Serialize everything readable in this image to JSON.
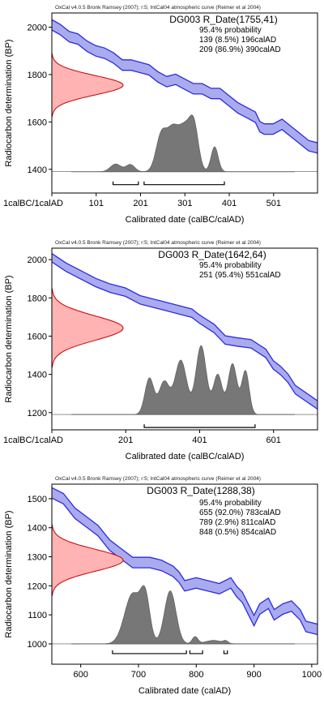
{
  "chart_data": [
    {
      "type": "area",
      "header": "OxCal v4.0.5 Bronk Ramsey (2007); r:5; IntCal04 atmospheric curve (Reimer et al 2004)",
      "title": "DG003 R_Date(1755,41)",
      "prob_heading": "95.4% probability",
      "prob_lines": [
        "139 (8.5%) 196calAD",
        "209 (86.9%) 390calAD"
      ],
      "xlabel": "Calibrated date (calBC/calAD)",
      "ylabel": "Radiocarbon determination (BP)",
      "xlim": [
        1,
        600
      ],
      "ylim": [
        1300,
        2060
      ],
      "x_ticks": [
        {
          "v": 1,
          "label": "1calBC/1calAD"
        },
        {
          "v": 101,
          "label": "101"
        },
        {
          "v": 201,
          "label": "201"
        },
        {
          "v": 301,
          "label": "301"
        },
        {
          "v": 401,
          "label": "401"
        },
        {
          "v": 501,
          "label": "501"
        }
      ],
      "y_ticks": [
        1400,
        1600,
        1800,
        2000
      ],
      "radiocarbon_date": {
        "mean": 1755,
        "sd": 41
      },
      "baseline_bp": 1390,
      "ranges": [
        [
          139,
          196
        ],
        [
          209,
          390
        ]
      ],
      "calibration_curve": [
        [
          1,
          2010
        ],
        [
          20,
          1990
        ],
        [
          40,
          1960
        ],
        [
          60,
          1950
        ],
        [
          80,
          1920
        ],
        [
          100,
          1900
        ],
        [
          120,
          1890
        ],
        [
          140,
          1870
        ],
        [
          160,
          1840
        ],
        [
          180,
          1840
        ],
        [
          200,
          1830
        ],
        [
          220,
          1820
        ],
        [
          240,
          1790
        ],
        [
          260,
          1770
        ],
        [
          280,
          1780
        ],
        [
          300,
          1760
        ],
        [
          320,
          1740
        ],
        [
          340,
          1740
        ],
        [
          360,
          1720
        ],
        [
          380,
          1720
        ],
        [
          400,
          1690
        ],
        [
          420,
          1660
        ],
        [
          440,
          1640
        ],
        [
          460,
          1620
        ],
        [
          470,
          1580
        ],
        [
          480,
          1570
        ],
        [
          500,
          1570
        ],
        [
          520,
          1590
        ],
        [
          540,
          1560
        ],
        [
          560,
          1530
        ],
        [
          580,
          1500
        ],
        [
          600,
          1490
        ]
      ],
      "curve_band_bp": 22,
      "posterior_peaks": [
        {
          "c": 145,
          "w": 12,
          "h": 0.13
        },
        {
          "c": 178,
          "w": 10,
          "h": 0.12
        },
        {
          "c": 248,
          "w": 12,
          "h": 0.62
        },
        {
          "c": 272,
          "w": 12,
          "h": 0.55
        },
        {
          "c": 300,
          "w": 16,
          "h": 0.75
        },
        {
          "c": 322,
          "w": 10,
          "h": 0.6
        },
        {
          "c": 368,
          "w": 8,
          "h": 0.42
        }
      ],
      "colors": {
        "curve": "#2a2ee0",
        "band": "#aaaaee",
        "prior_fill": "#ffb3b3",
        "prior_line": "#c80000",
        "posterior": "#777777",
        "plot_bg": "#ffffff"
      }
    },
    {
      "type": "area",
      "header": "OxCal v4.0.5 Bronk Ramsey (2007); r:5; IntCal04 atmospheric curve (Reimer et al 2004)",
      "title": "DG003 R_Date(1642,64)",
      "prob_heading": "95.4% probability",
      "prob_lines": [
        "251 (95.4%) 551calAD"
      ],
      "xlabel": "Calibrated date (calBC/calAD)",
      "ylabel": "Radiocarbon determination (BP)",
      "xlim": [
        1,
        720
      ],
      "ylim": [
        1110,
        2060
      ],
      "x_ticks": [
        {
          "v": 1,
          "label": "1calBC/1calAD"
        },
        {
          "v": 201,
          "label": "201"
        },
        {
          "v": 401,
          "label": "401"
        },
        {
          "v": 601,
          "label": "601"
        }
      ],
      "y_ticks": [
        1200,
        1400,
        1600,
        1800,
        2000
      ],
      "radiocarbon_date": {
        "mean": 1642,
        "sd": 64
      },
      "baseline_bp": 1190,
      "ranges": [
        [
          251,
          551
        ]
      ],
      "calibration_curve": [
        [
          1,
          2010
        ],
        [
          40,
          1960
        ],
        [
          80,
          1920
        ],
        [
          120,
          1880
        ],
        [
          160,
          1850
        ],
        [
          200,
          1830
        ],
        [
          240,
          1790
        ],
        [
          280,
          1770
        ],
        [
          300,
          1760
        ],
        [
          340,
          1740
        ],
        [
          380,
          1720
        ],
        [
          400,
          1690
        ],
        [
          440,
          1640
        ],
        [
          470,
          1580
        ],
        [
          500,
          1570
        ],
        [
          540,
          1560
        ],
        [
          580,
          1510
        ],
        [
          600,
          1450
        ],
        [
          620,
          1420
        ],
        [
          640,
          1380
        ],
        [
          660,
          1320
        ],
        [
          690,
          1280
        ],
        [
          720,
          1240
        ]
      ],
      "curve_band_bp": 22,
      "posterior_peaks": [
        {
          "c": 265,
          "w": 12,
          "h": 0.5
        },
        {
          "c": 305,
          "w": 14,
          "h": 0.45
        },
        {
          "c": 350,
          "w": 16,
          "h": 0.75
        },
        {
          "c": 405,
          "w": 14,
          "h": 0.95
        },
        {
          "c": 450,
          "w": 12,
          "h": 0.55
        },
        {
          "c": 490,
          "w": 12,
          "h": 0.7
        },
        {
          "c": 525,
          "w": 10,
          "h": 0.6
        }
      ],
      "colors": {
        "curve": "#2a2ee0",
        "band": "#aaaaee",
        "prior_fill": "#ffb3b3",
        "prior_line": "#c80000",
        "posterior": "#777777",
        "plot_bg": "#ffffff"
      }
    },
    {
      "type": "area",
      "header": "OxCal v4.0.5 Bronk Ramsey (2007); r:5; IntCal04 atmospheric curve (Reimer et al 2004)",
      "title": "DG003 R_Date(1288,38)",
      "prob_heading": "95.4% probability",
      "prob_lines": [
        "655 (92.0%) 783calAD",
        "789 (2.9%) 811calAD",
        "848 (0.5%) 854calAD"
      ],
      "xlabel": "Calibrated date (calAD)",
      "ylabel": "Radiocarbon determination (BP)",
      "xlim": [
        550,
        1010
      ],
      "ylim": [
        930,
        1550
      ],
      "x_ticks": [
        {
          "v": 600,
          "label": "600"
        },
        {
          "v": 700,
          "label": "700"
        },
        {
          "v": 800,
          "label": "800"
        },
        {
          "v": 900,
          "label": "900"
        },
        {
          "v": 1000,
          "label": "1000"
        }
      ],
      "y_ticks": [
        1000,
        1100,
        1200,
        1300,
        1400,
        1500
      ],
      "radiocarbon_date": {
        "mean": 1288,
        "sd": 38
      },
      "baseline_bp": 1000,
      "ranges": [
        [
          655,
          783
        ],
        [
          789,
          811
        ],
        [
          848,
          854
        ]
      ],
      "calibration_curve": [
        [
          550,
          1520
        ],
        [
          570,
          1500
        ],
        [
          590,
          1450
        ],
        [
          610,
          1420
        ],
        [
          630,
          1390
        ],
        [
          650,
          1340
        ],
        [
          670,
          1310
        ],
        [
          690,
          1280
        ],
        [
          700,
          1280
        ],
        [
          720,
          1280
        ],
        [
          740,
          1270
        ],
        [
          760,
          1250
        ],
        [
          770,
          1230
        ],
        [
          780,
          1200
        ],
        [
          800,
          1210
        ],
        [
          820,
          1200
        ],
        [
          840,
          1190
        ],
        [
          860,
          1210
        ],
        [
          870,
          1180
        ],
        [
          880,
          1160
        ],
        [
          890,
          1120
        ],
        [
          900,
          1080
        ],
        [
          910,
          1120
        ],
        [
          925,
          1140
        ],
        [
          935,
          1100
        ],
        [
          950,
          1120
        ],
        [
          965,
          1130
        ],
        [
          980,
          1100
        ],
        [
          990,
          1060
        ],
        [
          1010,
          1050
        ]
      ],
      "curve_band_bp": 18,
      "posterior_peaks": [
        {
          "c": 690,
          "w": 14,
          "h": 0.85
        },
        {
          "c": 712,
          "w": 8,
          "h": 0.7
        },
        {
          "c": 755,
          "w": 10,
          "h": 0.9
        },
        {
          "c": 798,
          "w": 5,
          "h": 0.12
        },
        {
          "c": 830,
          "w": 14,
          "h": 0.06
        },
        {
          "c": 851,
          "w": 4,
          "h": 0.04
        }
      ],
      "colors": {
        "curve": "#2a2ee0",
        "band": "#aaaaee",
        "prior_fill": "#ffb3b3",
        "prior_line": "#c80000",
        "posterior": "#777777",
        "plot_bg": "#ffffff"
      }
    }
  ]
}
